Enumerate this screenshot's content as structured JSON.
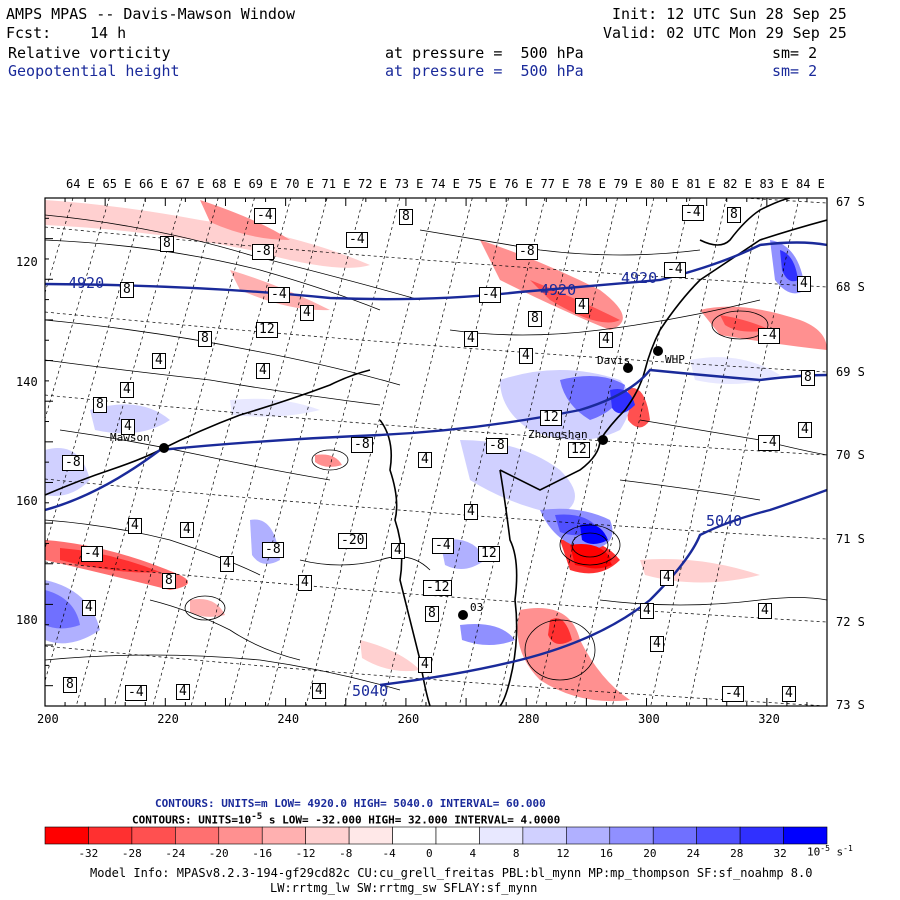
{
  "header": {
    "title": "AMPS MPAS -- Davis-Mawson Window",
    "forecast_label": "Fcst:",
    "forecast_value": "14 h",
    "init": "Init: 12 UTC Sun 28 Sep 25",
    "valid": "Valid: 02 UTC Mon 29 Sep 25",
    "field1": "Relative vorticity",
    "field1_level": "at pressure =  500 hPa",
    "field1_sm": "sm= 2",
    "field2": "Geopotential height",
    "field2_level": "at pressure =  500 hPa",
    "field2_sm": "sm= 2"
  },
  "top_lon_labels": [
    "64 E",
    "65 E",
    "66 E",
    "67 E",
    "68 E",
    "69 E",
    "70 E",
    "71 E",
    "72 E",
    "73 E",
    "74 E",
    "75 E",
    "76 E",
    "77 E",
    "78 E",
    "79 E",
    "80 E",
    "81 E",
    "82 E",
    "83 E",
    "84 E"
  ],
  "right_lat_labels": [
    "67 S",
    "68 S",
    "69 S",
    "70 S",
    "71 S",
    "72 S",
    "73 S"
  ],
  "y_axis_labels": [
    "120",
    "140",
    "160",
    "180"
  ],
  "x_axis_labels": [
    "200",
    "220",
    "240",
    "260",
    "280",
    "300",
    "320"
  ],
  "stations": [
    {
      "name": "Mawson"
    },
    {
      "name": "Davis"
    },
    {
      "name": "WHP"
    },
    {
      "name": "Zhongshan"
    },
    {
      "name": "03"
    }
  ],
  "height_contour_labels": [
    "4920",
    "4920",
    "4920",
    "5040",
    "5040"
  ],
  "vorticity_labels": [
    "-4",
    "8",
    "-4",
    "8",
    "8",
    "-4",
    "-8",
    "-8",
    "8",
    "-4",
    "-4",
    "4",
    "4",
    "8",
    "8",
    "12",
    "4",
    "4",
    "4",
    "4",
    "4",
    "-4",
    "4",
    "8",
    "12",
    "8",
    "4",
    "4",
    "-4",
    "-8",
    "12",
    "-8",
    "-8",
    "4",
    "4",
    "-4",
    "4",
    "4",
    "-8",
    "4",
    "4",
    "-20",
    "-12",
    "12",
    "-4",
    "4",
    "8",
    "4",
    "8",
    "-4",
    "4",
    "4",
    "4",
    "4",
    "4",
    "4",
    "-4",
    "4",
    "-4",
    "4",
    "8",
    "4"
  ],
  "colorbar": {
    "contours1": "CONTOURS:  UNITS=m  LOW=   4920.0      HIGH=  5040.0      INTERVAL=    60.000",
    "contours2": "CONTOURS:  UNITS=10",
    "contours2_tail": "s    LOW=  -32.000        HIGH=   32.000        INTERVAL=    4.0000",
    "exp": "-5",
    "exp2": "-1",
    "tick_labels": [
      "-32",
      "-28",
      "-24",
      "-20",
      "-16",
      "-12",
      "-8",
      "-4",
      "0",
      "4",
      "8",
      "12",
      "16",
      "20",
      "24",
      "28",
      "32"
    ],
    "units": "10",
    "colors": [
      "#ff0000",
      "#ff3030",
      "#ff5050",
      "#ff7070",
      "#ff9090",
      "#ffb0b0",
      "#ffd0d0",
      "#ffe8e8",
      "#ffffff",
      "#ffffff",
      "#e8e8ff",
      "#d0d0ff",
      "#b0b0ff",
      "#9090ff",
      "#7070ff",
      "#5050ff",
      "#3030ff",
      "#0000ff"
    ]
  },
  "footer": {
    "model_info": "Model Info: MPASv8.2.3-194-gf29cd82c CU:cu_grell_freitas PBL:bl_mynn MP:mp_thompson SF:sf_noahmp 8.0",
    "model_info2": "LW:rrtmg_lw SW:rrtmg_sw SFLAY:sf_mynn"
  }
}
